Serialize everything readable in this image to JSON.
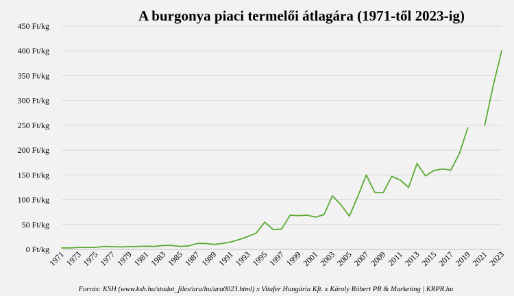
{
  "chart_data": {
    "type": "line",
    "title": "A burgonya piaci termelői átlagára (1971-től 2023-ig)",
    "source": "Forrás: KSH (www.ksh.hu/stadat_files/ara/hu/ara0023.html) x Vitafer Hungária Kft. x Károly Róbert PR & Marketing | KRPR.hu",
    "y_unit_suffix": " Ft/kg",
    "ylim": [
      0,
      450
    ],
    "y_ticks": [
      0,
      50,
      100,
      150,
      200,
      250,
      300,
      350,
      400,
      450
    ],
    "y_tick_labels": [
      "0 Ft/kg",
      "50 Ft/kg",
      "100 Ft/kg",
      "150 Ft/kg",
      "200 Ft/kg",
      "250 Ft/kg",
      "300 Ft/kg",
      "350 Ft/kg",
      "400 Ft/kg",
      "450 Ft/kg"
    ],
    "x_tick_labels": [
      "1971",
      "1973",
      "1975",
      "1977",
      "1979",
      "1981",
      "1983",
      "1985",
      "1987",
      "1989",
      "1991",
      "1993",
      "1995",
      "1997",
      "1999",
      "2001",
      "2003",
      "2005",
      "2007",
      "2009",
      "2011",
      "2013",
      "2015",
      "2017",
      "2019",
      "2021",
      "2023"
    ],
    "xlim": [
      1971,
      2023
    ],
    "grid": true,
    "legend": "none",
    "color": "#5aaa32",
    "series": [
      {
        "x": [
          1971,
          1972,
          1973,
          1974,
          1975,
          1976,
          1977,
          1978,
          1979,
          1980,
          1981,
          1982,
          1983,
          1984,
          1985,
          1986,
          1987,
          1988,
          1989,
          1990,
          1991,
          1992,
          1993,
          1994,
          1995,
          1996,
          1997,
          1998,
          1999,
          2000,
          2001,
          2002,
          2003,
          2004,
          2005,
          2006,
          2007,
          2008,
          2009,
          2010,
          2011,
          2012,
          2013,
          2014,
          2015,
          2016,
          2017,
          2018,
          2019,
          2020,
          2021,
          2022,
          2023
        ],
        "values": [
          3,
          3,
          4,
          4,
          4,
          6,
          5.5,
          5,
          5.5,
          6,
          6.5,
          6,
          8,
          8,
          6,
          7,
          12,
          12,
          10,
          12,
          15,
          20,
          26,
          33,
          55,
          40,
          41,
          69,
          68,
          69,
          65,
          70,
          108,
          90,
          67,
          107,
          150,
          115,
          114,
          147,
          140,
          125,
          173,
          148,
          159,
          162,
          160,
          193,
          245,
          null,
          250,
          330,
          400
        ]
      }
    ]
  }
}
